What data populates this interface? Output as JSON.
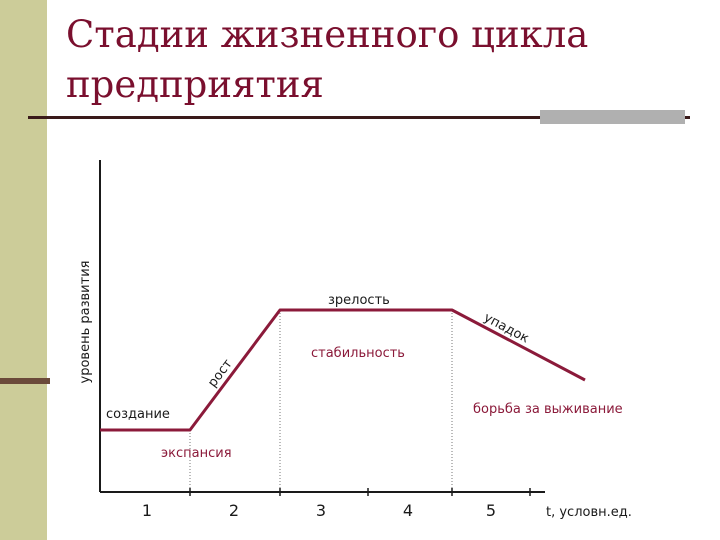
{
  "slide": {
    "title": "Стадии жизненного цикла предприятия"
  },
  "diagram": {
    "y_axis_label": "уровень развития",
    "x_axis_label": "t, условн.ед.",
    "x_ticks": [
      "1",
      "2",
      "3",
      "4",
      "5"
    ],
    "stage_labels": {
      "creation": "создание",
      "growth": "рост",
      "maturity": "зрелость",
      "decline": "упадок"
    },
    "phase_labels": {
      "expansion": "экспансия",
      "stability": "стабильность",
      "survival": "борьба за выживание"
    },
    "colors": {
      "curve": "#8b1a3a",
      "phase_text": "#8b1a3a",
      "title": "#7a0f2e",
      "side_bar": "#cccc99"
    }
  }
}
